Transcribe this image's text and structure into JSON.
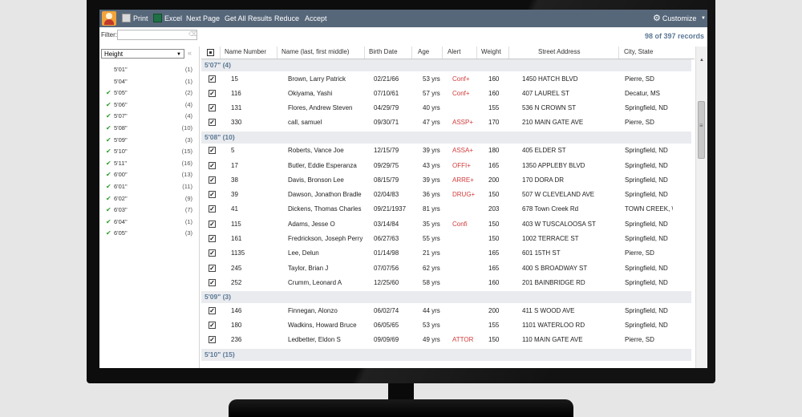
{
  "toolbar": {
    "print": "Print",
    "excel": "Excel",
    "next_page": "Next Page",
    "get_all": "Get All Results",
    "reduce": "Reduce",
    "accept": "Accept",
    "customize": "Customize"
  },
  "filter": {
    "label": "Filter:",
    "value": "",
    "placeholder": ""
  },
  "records": "98 of 397 records",
  "facet_select": "Height",
  "facets": [
    {
      "label": "5'01\"",
      "count": "(1)",
      "checked": false
    },
    {
      "label": "5'04\"",
      "count": "(1)",
      "checked": false
    },
    {
      "label": "5'05\"",
      "count": "(2)",
      "checked": true
    },
    {
      "label": "5'06\"",
      "count": "(4)",
      "checked": true
    },
    {
      "label": "5'07\"",
      "count": "(4)",
      "checked": true
    },
    {
      "label": "5'08\"",
      "count": "(10)",
      "checked": true
    },
    {
      "label": "5'09\"",
      "count": "(3)",
      "checked": true
    },
    {
      "label": "5'10\"",
      "count": "(15)",
      "checked": true
    },
    {
      "label": "5'11\"",
      "count": "(16)",
      "checked": true
    },
    {
      "label": "6'00\"",
      "count": "(13)",
      "checked": true
    },
    {
      "label": "6'01\"",
      "count": "(11)",
      "checked": true
    },
    {
      "label": "6'02\"",
      "count": "(9)",
      "checked": true
    },
    {
      "label": "6'03\"",
      "count": "(7)",
      "checked": true
    },
    {
      "label": "6'04\"",
      "count": "(1)",
      "checked": true
    },
    {
      "label": "6'05\"",
      "count": "(3)",
      "checked": true
    }
  ],
  "columns": [
    "Name Number",
    "Name (last, first middle)",
    "Birth Date",
    "Age",
    "Alert",
    "Weight",
    "Street Address",
    "City, State"
  ],
  "groups": [
    {
      "label": "5'07\"  (4)",
      "rows": [
        [
          "15",
          "Brown, Larry Patrick",
          "02/21/66",
          "53 yrs",
          "Conf+",
          "160",
          "1450 HATCH BLVD",
          "Pierre, SD"
        ],
        [
          "116",
          "Okiyama, Yashi",
          "07/10/61",
          "57 yrs",
          "Conf+",
          "160",
          "407 LAUREL ST",
          "Decatur, MS"
        ],
        [
          "131",
          "Flores, Andrew Steven",
          "04/29/79",
          "40 yrs",
          "",
          "155",
          "536 N CROWN ST",
          "Springfield, ND"
        ],
        [
          "330",
          "call, samuel",
          "09/30/71",
          "47 yrs",
          "ASSP+",
          "170",
          "210 MAIN GATE AVE",
          "Pierre, SD"
        ]
      ]
    },
    {
      "label": "5'08\"  (10)",
      "rows": [
        [
          "5",
          "Roberts, Vance Joe",
          "12/15/79",
          "39 yrs",
          "ASSA+",
          "180",
          "405 ELDER ST",
          "Springfield, ND"
        ],
        [
          "17",
          "Butler, Eddie Esperanza",
          "09/29/75",
          "43 yrs",
          "OFFI+",
          "165",
          "1350 APPLEBY BLVD",
          "Springfield, ND"
        ],
        [
          "38",
          "Davis, Bronson Lee",
          "08/15/79",
          "39 yrs",
          "ARRE+",
          "200",
          "170 DORA DR",
          "Springfield, ND"
        ],
        [
          "39",
          "Dawson, Jonathon Bradle",
          "02/04/83",
          "36 yrs",
          "DRUG+",
          "150",
          "507 W CLEVELAND AVE",
          "Springfield, ND"
        ],
        [
          "41",
          "Dickens, Thomas Charles",
          "09/21/1937",
          "81 yrs",
          "",
          "203",
          "678 Town Creek Rd",
          "TOWN CREEK, \\"
        ],
        [
          "115",
          "Adams, Jesse O",
          "03/14/84",
          "35 yrs",
          "Confi",
          "150",
          "403 W TUSCALOOSA ST",
          "Springfield, ND"
        ],
        [
          "161",
          "Fredrickson, Joseph Perry",
          "06/27/63",
          "55 yrs",
          "",
          "150",
          "1002 TERRACE ST",
          "Springfield, ND"
        ],
        [
          "1135",
          "Lee, Delun",
          "01/14/98",
          "21 yrs",
          "",
          "165",
          "601 15TH ST",
          "Pierre, SD"
        ],
        [
          "245",
          "Taylor, Brian J",
          "07/07/56",
          "62 yrs",
          "",
          "165",
          "400 S BROADWAY ST",
          "Springfield, ND"
        ],
        [
          "252",
          "Crumm, Leonard A",
          "12/25/60",
          "58 yrs",
          "",
          "160",
          "201 BAINBRIDGE RD",
          "Springfield, ND"
        ]
      ]
    },
    {
      "label": "5'09\"  (3)",
      "rows": [
        [
          "146",
          "Finnegan, Alonzo",
          "06/02/74",
          "44 yrs",
          "",
          "200",
          "411 S WOOD AVE",
          "Springfield, ND"
        ],
        [
          "180",
          "Wadkins, Howard Bruce",
          "06/05/65",
          "53 yrs",
          "",
          "155",
          "1101 WATERLOO RD",
          "Springfield, ND"
        ],
        [
          "236",
          "Ledbetter, Eldon S",
          "09/09/69",
          "49 yrs",
          "ATTOR",
          "150",
          "110 MAIN GATE AVE",
          "Pierre, SD"
        ]
      ]
    },
    {
      "label": "5'10\"  (15)",
      "rows": []
    }
  ]
}
